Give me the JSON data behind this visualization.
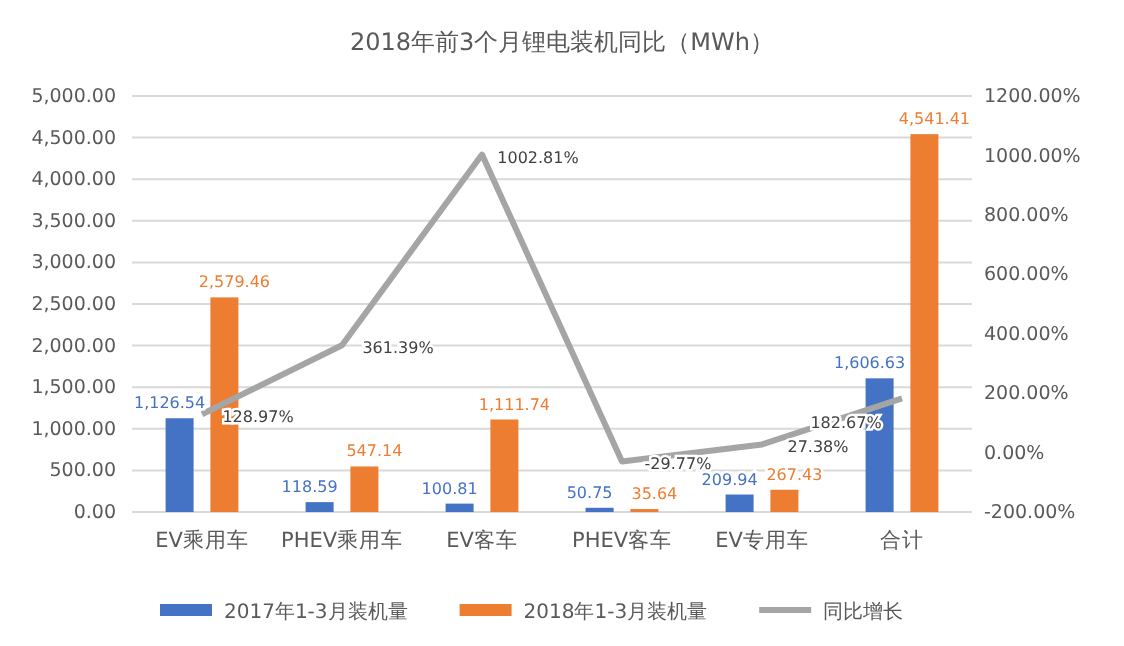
{
  "chart_data": {
    "type": "bar",
    "title": "2018年前3个月锂电装机同比（MWh）",
    "categories": [
      "EV乘用车",
      "PHEV乘用车",
      "EV客车",
      "PHEV客车",
      "EV专用车",
      "合计"
    ],
    "series": [
      {
        "name": "2017年1-3月装机量",
        "color": "#4472c4",
        "values": [
          1126.54,
          118.59,
          100.81,
          50.75,
          209.94,
          1606.63
        ],
        "value_labels": [
          "1,126.54",
          "118.59",
          "100.81",
          "50.75",
          "209.94",
          "1,606.63"
        ]
      },
      {
        "name": "2018年1-3月装机量",
        "color": "#ed7d31",
        "values": [
          2579.46,
          547.14,
          1111.74,
          35.64,
          267.43,
          4541.41
        ],
        "value_labels": [
          "2,579.46",
          "547.14",
          "1,111.74",
          "35.64",
          "267.43",
          "4,541.41"
        ]
      },
      {
        "name": "同比增长",
        "type": "line",
        "axis": "y2",
        "color": "#a5a5a5",
        "values": [
          128.97,
          361.39,
          1002.81,
          -29.77,
          27.38,
          182.67
        ],
        "value_labels": [
          "128.97%",
          "361.39%",
          "1002.81%",
          "-29.77%",
          "27.38%",
          "182.67%"
        ]
      }
    ],
    "ylim": [
      0,
      5000
    ],
    "yticks": [
      {
        "value": 0,
        "label": "0.00"
      },
      {
        "value": 500,
        "label": "500.00"
      },
      {
        "value": 1000,
        "label": "1,000.00"
      },
      {
        "value": 1500,
        "label": "1,500.00"
      },
      {
        "value": 2000,
        "label": "2,000.00"
      },
      {
        "value": 2500,
        "label": "2,500.00"
      },
      {
        "value": 3000,
        "label": "3,000.00"
      },
      {
        "value": 3500,
        "label": "3,500.00"
      },
      {
        "value": 4000,
        "label": "4,000.00"
      },
      {
        "value": 4500,
        "label": "4,500.00"
      },
      {
        "value": 5000,
        "label": "5,000.00"
      }
    ],
    "y2lim": [
      -200,
      1200
    ],
    "y2ticks": [
      {
        "value": -200,
        "label": "-200.00%"
      },
      {
        "value": 0,
        "label": "0.00%"
      },
      {
        "value": 200,
        "label": "200.00%"
      },
      {
        "value": 400,
        "label": "400.00%"
      },
      {
        "value": 600,
        "label": "600.00%"
      },
      {
        "value": 800,
        "label": "800.00%"
      },
      {
        "value": 1000,
        "label": "1000.00%"
      },
      {
        "value": 1200,
        "label": "1200.00%"
      }
    ],
    "grid": "y",
    "legend": "bottom"
  }
}
